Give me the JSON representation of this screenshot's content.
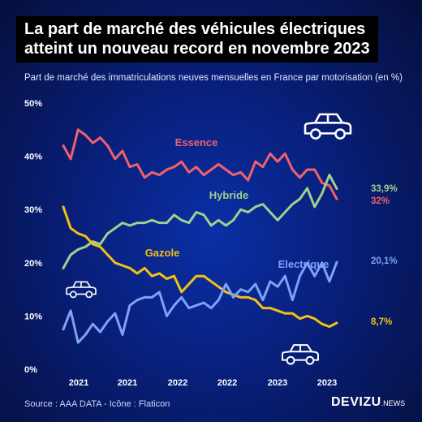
{
  "title": {
    "line1": "La part de marché des véhicules électriques",
    "line2": "atteint un nouveau record en novembre 2023"
  },
  "subtitle": "Part de marché des immatriculations neuves mensuelles en France par motorisation (en %)",
  "source": "Source : AAA DATA - Icône : Flaticon",
  "brand": {
    "name": "DEVIZU",
    "suffix": ".NEWS"
  },
  "icons": [
    "car-icon",
    "car-icon",
    "car-icon"
  ],
  "chart_data": {
    "type": "line",
    "ylim": [
      0,
      50
    ],
    "y_ticks": [
      "0%",
      "10%",
      "20%",
      "30%",
      "40%",
      "50%"
    ],
    "x_ticks": [
      "2021",
      "2021",
      "2022",
      "2022",
      "2023",
      "2023"
    ],
    "grid": false,
    "series": [
      {
        "name": "Essence",
        "color": "#f2606c",
        "end_label": "32%",
        "values": [
          42,
          39.5,
          45,
          44,
          42.5,
          43.5,
          42,
          39.5,
          41,
          38,
          38.5,
          36,
          37,
          36.5,
          37.5,
          38,
          39,
          37,
          38,
          36.5,
          37.5,
          38.5,
          37.5,
          36.5,
          37,
          35.5,
          39,
          38,
          40.5,
          39,
          40.5,
          37.5,
          36,
          37.5,
          37.5,
          35,
          34.5,
          32
        ]
      },
      {
        "name": "Hybride",
        "color": "#9fd08e",
        "end_label": "33,9%",
        "values": [
          19,
          21.5,
          22.5,
          23,
          24,
          23.5,
          25.5,
          26.5,
          27.5,
          27,
          27.5,
          27.5,
          28,
          27.5,
          27.5,
          29,
          28,
          27.5,
          29.5,
          29,
          27,
          28,
          27,
          28,
          30,
          29.5,
          30.5,
          31,
          29.5,
          28,
          29.5,
          31,
          32,
          34,
          30.5,
          33,
          36.5,
          33.9
        ]
      },
      {
        "name": "Gazole",
        "color": "#f5c012",
        "end_label": "8,7%",
        "values": [
          30.5,
          26.5,
          25.5,
          25,
          23.5,
          23,
          21.5,
          20,
          19.5,
          19,
          18,
          19,
          17.5,
          18,
          17,
          17.5,
          14.5,
          16,
          17.5,
          17.5,
          16.5,
          15.5,
          14.5,
          14,
          13.5,
          13.5,
          13,
          11.5,
          11.5,
          11,
          10.5,
          10.5,
          9.5,
          10,
          9.5,
          8.5,
          8,
          8.7
        ]
      },
      {
        "name": "Electrique",
        "color": "#7da3f5",
        "end_label": "20,1%",
        "values": [
          7.5,
          11,
          5,
          6.5,
          8.5,
          7,
          9,
          10.5,
          6.5,
          12,
          13,
          13.5,
          13.5,
          14.5,
          10,
          12,
          13.5,
          11.5,
          12,
          12.5,
          11.5,
          13,
          16,
          13.5,
          15,
          14.5,
          16,
          13,
          16.5,
          15.5,
          17.5,
          13,
          17.5,
          20,
          17.5,
          20,
          16.5,
          20.1
        ]
      }
    ]
  }
}
